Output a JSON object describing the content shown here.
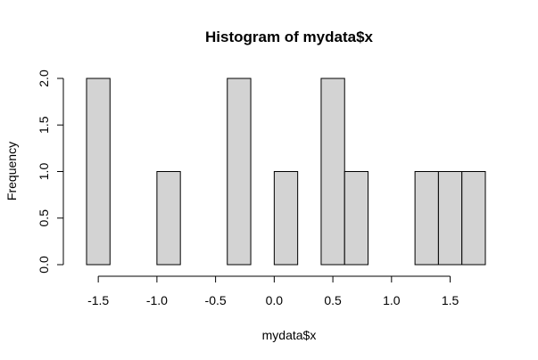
{
  "chart_data": {
    "type": "bar",
    "title": "Histogram of mydata$x",
    "xlabel": "mydata$x",
    "ylabel": "Frequency",
    "xlim": [
      -1.6,
      1.8
    ],
    "ylim": [
      0,
      2
    ],
    "x_ticks": [
      -1.5,
      -1.0,
      -0.5,
      0.0,
      0.5,
      1.0,
      1.5
    ],
    "x_tick_labels": [
      "-1.5",
      "-1.0",
      "-0.5",
      "0.0",
      "0.5",
      "1.0",
      "1.5"
    ],
    "y_ticks": [
      0.0,
      0.5,
      1.0,
      1.5,
      2.0
    ],
    "y_tick_labels": [
      "0.0",
      "0.5",
      "1.0",
      "1.5",
      "2.0"
    ],
    "bins": [
      {
        "x0": -1.6,
        "x1": -1.4,
        "count": 2
      },
      {
        "x0": -1.4,
        "x1": -1.2,
        "count": 0
      },
      {
        "x0": -1.2,
        "x1": -1.0,
        "count": 0
      },
      {
        "x0": -1.0,
        "x1": -0.8,
        "count": 1
      },
      {
        "x0": -0.8,
        "x1": -0.6,
        "count": 0
      },
      {
        "x0": -0.6,
        "x1": -0.4,
        "count": 0
      },
      {
        "x0": -0.4,
        "x1": -0.2,
        "count": 2
      },
      {
        "x0": -0.2,
        "x1": 0.0,
        "count": 0
      },
      {
        "x0": 0.0,
        "x1": 0.2,
        "count": 1
      },
      {
        "x0": 0.2,
        "x1": 0.4,
        "count": 0
      },
      {
        "x0": 0.4,
        "x1": 0.6,
        "count": 2
      },
      {
        "x0": 0.6,
        "x1": 0.8,
        "count": 1
      },
      {
        "x0": 0.8,
        "x1": 1.0,
        "count": 0
      },
      {
        "x0": 1.0,
        "x1": 1.2,
        "count": 0
      },
      {
        "x0": 1.2,
        "x1": 1.4,
        "count": 1
      },
      {
        "x0": 1.4,
        "x1": 1.6,
        "count": 1
      },
      {
        "x0": 1.6,
        "x1": 1.8,
        "count": 1
      }
    ],
    "colors": {
      "bar_fill": "#d3d3d3",
      "bar_stroke": "#000000"
    }
  }
}
